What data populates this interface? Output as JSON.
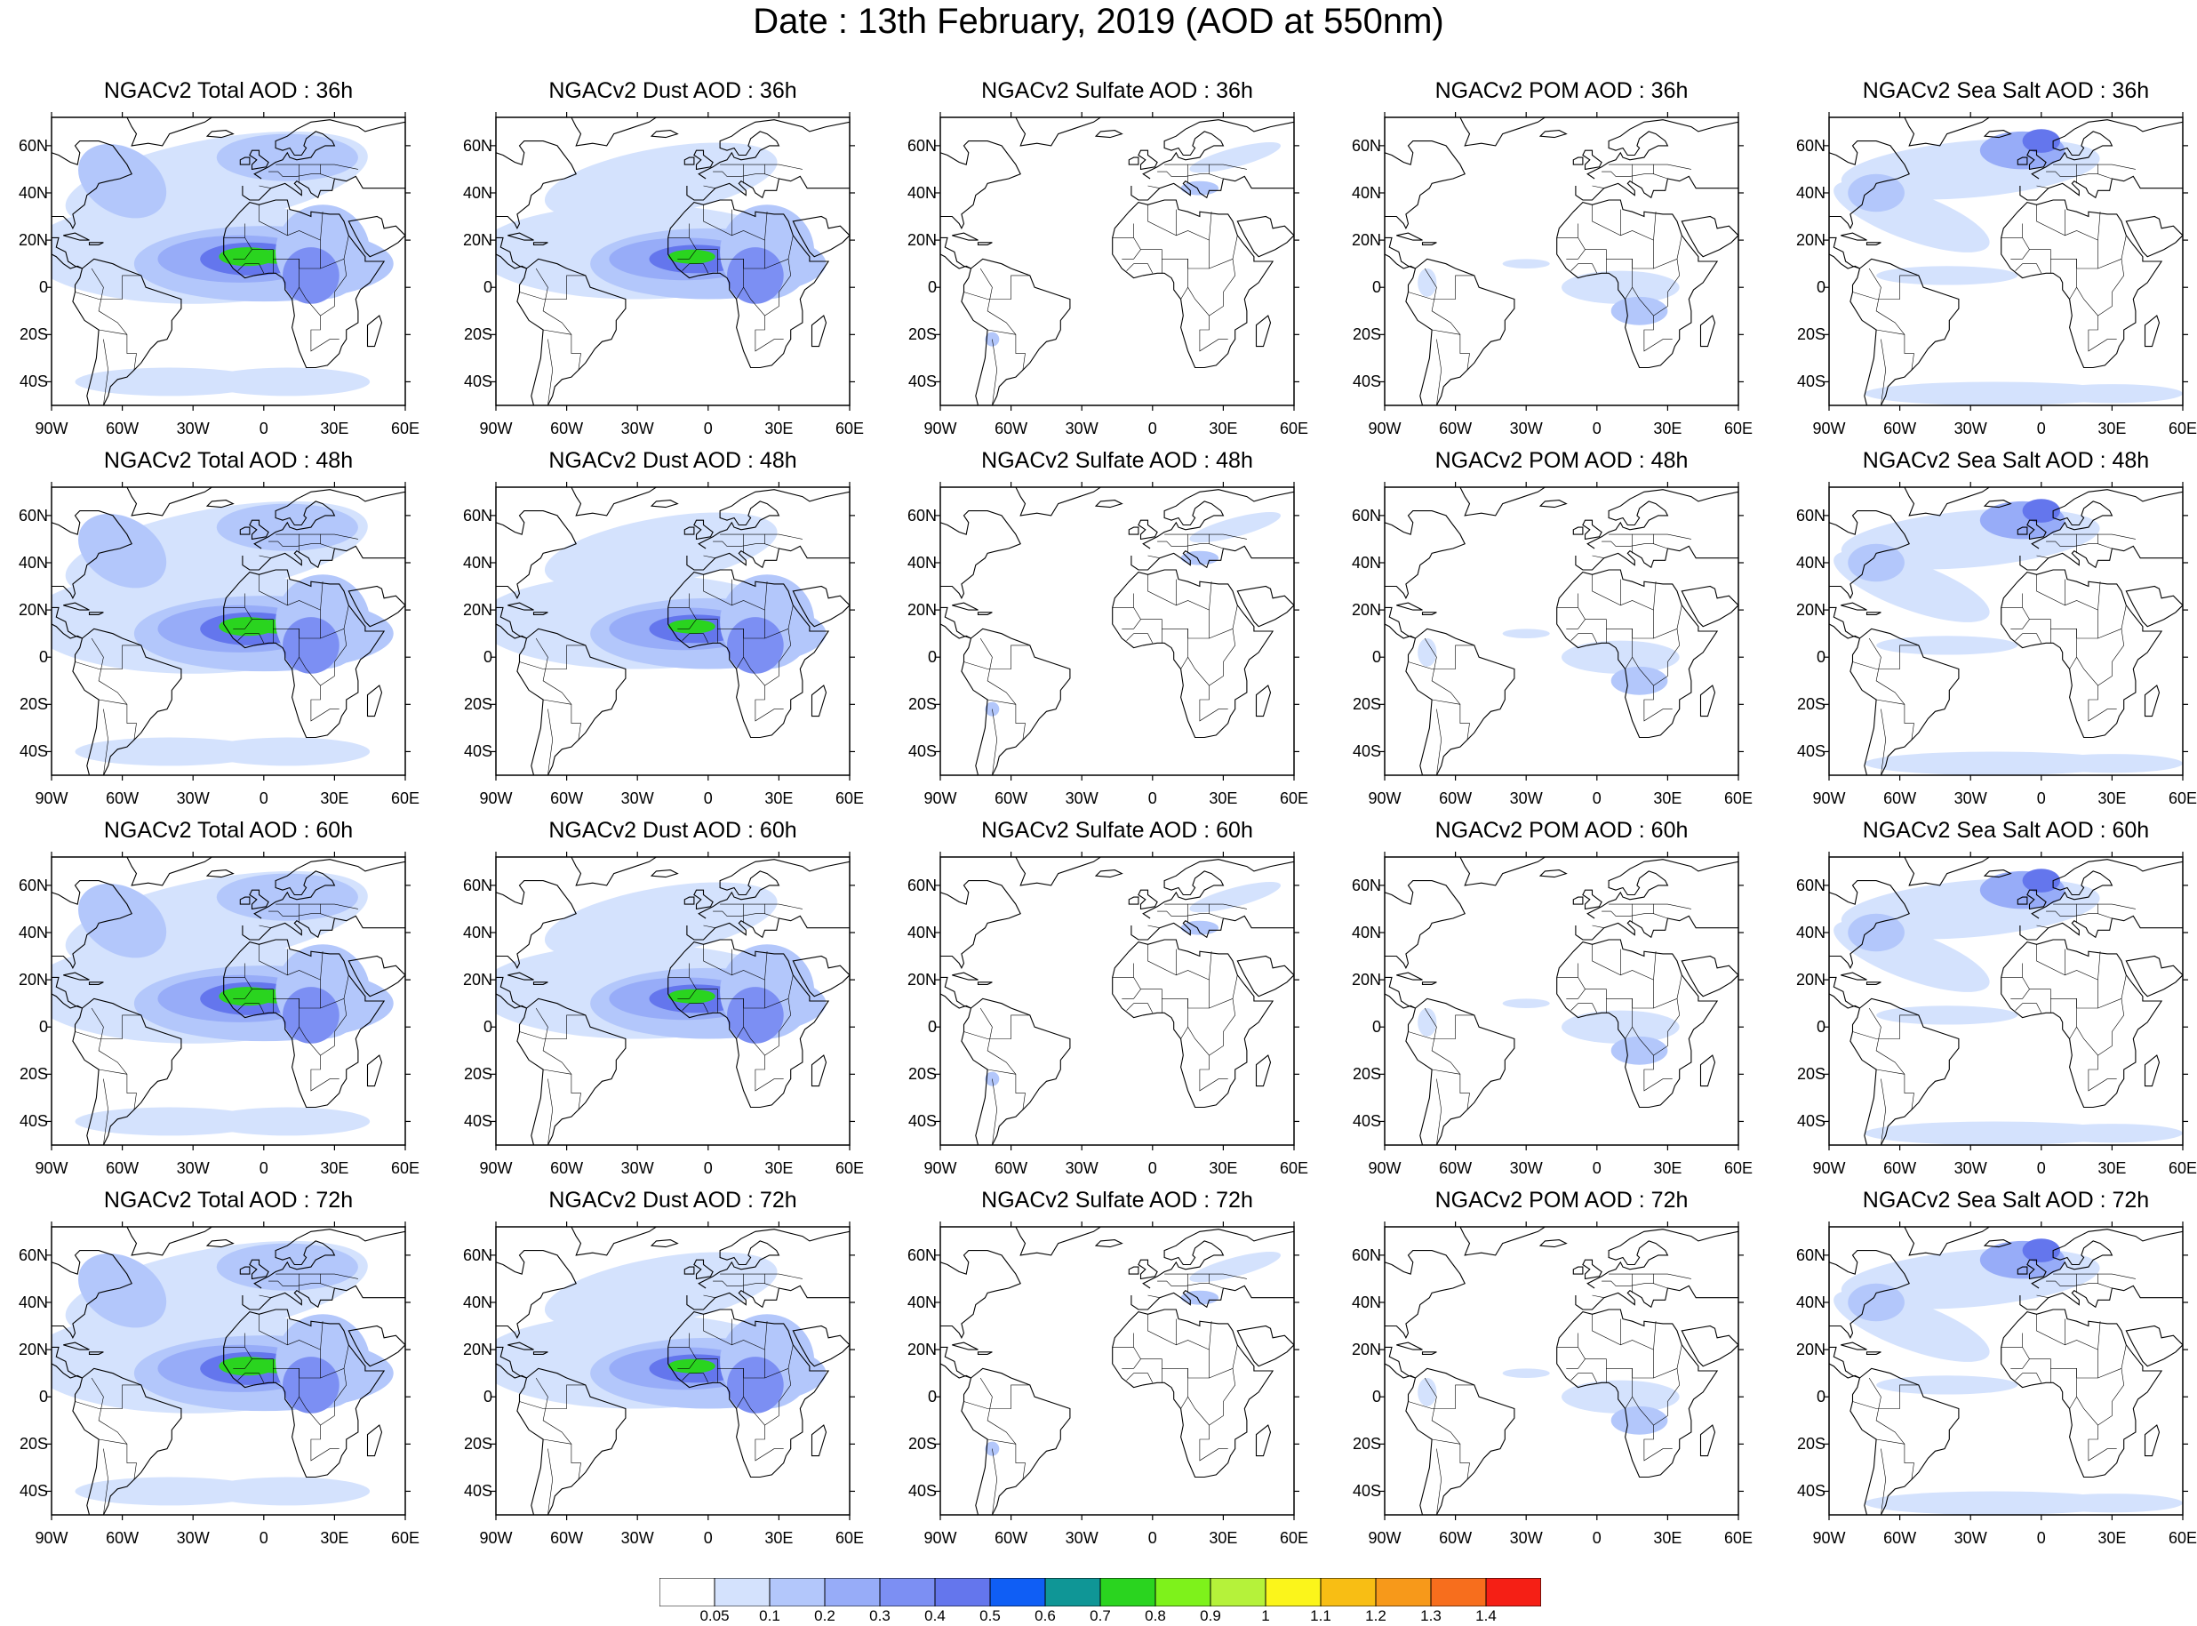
{
  "title": "Date : 13th February, 2019 (AOD at 550nm)",
  "rows": [
    {
      "panels": [
        "NGACv2 Total AOD : 36h",
        "NGACv2 Dust AOD : 36h",
        "NGACv2 Sulfate AOD : 36h",
        "NGACv2 POM AOD : 36h",
        "NGACv2 Sea Salt AOD : 36h"
      ]
    },
    {
      "panels": [
        "NGACv2 Total AOD : 48h",
        "NGACv2 Dust AOD : 48h",
        "NGACv2 Sulfate AOD : 48h",
        "NGACv2 POM AOD : 48h",
        "NGACv2 Sea Salt AOD : 48h"
      ]
    },
    {
      "panels": [
        "NGACv2 Total AOD : 60h",
        "NGACv2 Dust AOD : 60h",
        "NGACv2 Sulfate AOD : 60h",
        "NGACv2 POM AOD : 60h",
        "NGACv2 Sea Salt AOD : 60h"
      ]
    },
    {
      "panels": [
        "NGACv2 Total AOD : 72h",
        "NGACv2 Dust AOD : 72h",
        "NGACv2 Sulfate AOD : 72h",
        "NGACv2 POM AOD : 72h",
        "NGACv2 Sea Salt  AOD : 72h"
      ]
    }
  ],
  "lat_labels": [
    "60N",
    "40N",
    "20N",
    "0",
    "20S",
    "40S"
  ],
  "lon_labels": [
    "90W",
    "60W",
    "30W",
    "0",
    "30E",
    "60E"
  ],
  "colorbar": {
    "ticks": [
      "0.05",
      "0.1",
      "0.2",
      "0.3",
      "0.4",
      "0.5",
      "0.6",
      "0.7",
      "0.8",
      "0.9",
      "1",
      "1.1",
      "1.2",
      "1.3",
      "1.4"
    ],
    "colors": [
      "#ffffff",
      "#d4e2fd",
      "#b3c7fb",
      "#97acf8",
      "#7c8ff3",
      "#6476ed",
      "#0f5ef5",
      "#0f9696",
      "#2ad41f",
      "#7ef21b",
      "#b5f23a",
      "#fbf51b",
      "#f8be14",
      "#f7991a",
      "#f76e1d",
      "#f51f15"
    ]
  },
  "species": [
    "total",
    "dust",
    "sulfate",
    "pom",
    "seasalt"
  ]
}
